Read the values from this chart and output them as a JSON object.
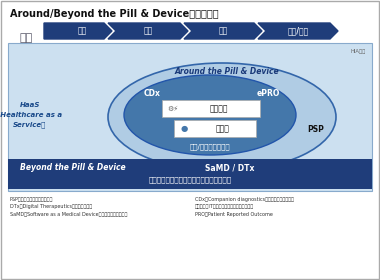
{
  "title": "Around/Beyond the Pill & Deviceのイメージ",
  "arrow_labels": [
    "予防",
    "診断",
    "治療",
    "予後/再生"
  ],
  "arrow_color": "#1f3d7a",
  "haas_light_bg": "#cce0f0",
  "haas_label": "HaaS\n(Healthcare as a\nService）",
  "haas_label_color": "#1a4a8a",
  "around_outer_fill": "#a8c8e8",
  "around_inner_fill": "#5588bb",
  "around_edge_color": "#2255aa",
  "around_label": "Around the Pill & Device",
  "around_label_color": "#ffffff",
  "cdx_label": "CDx",
  "epro_label": "ePRO",
  "psp_label": "PSP",
  "diag_label": "診断/治療支援アプリ",
  "med_device_label": "医療機器",
  "med_drug_label": "医薬品",
  "beyond_bg": "#1f3d7a",
  "beyond_label": "Beyond the Pill & Device",
  "samd_label": "SaMD / DTx",
  "collab_label": "業界以外とのコラボレーションや健康増進",
  "beyond_text_color": "#ffffff",
  "hia_label": "HIA作成",
  "footnote_left": "PSP：患者サポートプログラム\nDTx：Digital Therapeutics：デジタル治療\nSaMD：Software as a Medical Device：プログラム医療機器",
  "footnote_right": "CDx：Companion diagnostics：コンパニオン診断薬\n業界以外：ITか業やき体保険会社、自治体等\nPRO：Patient Reported Outcome",
  "bg_color": "#ffffff",
  "border_color": "#aaaaaa"
}
